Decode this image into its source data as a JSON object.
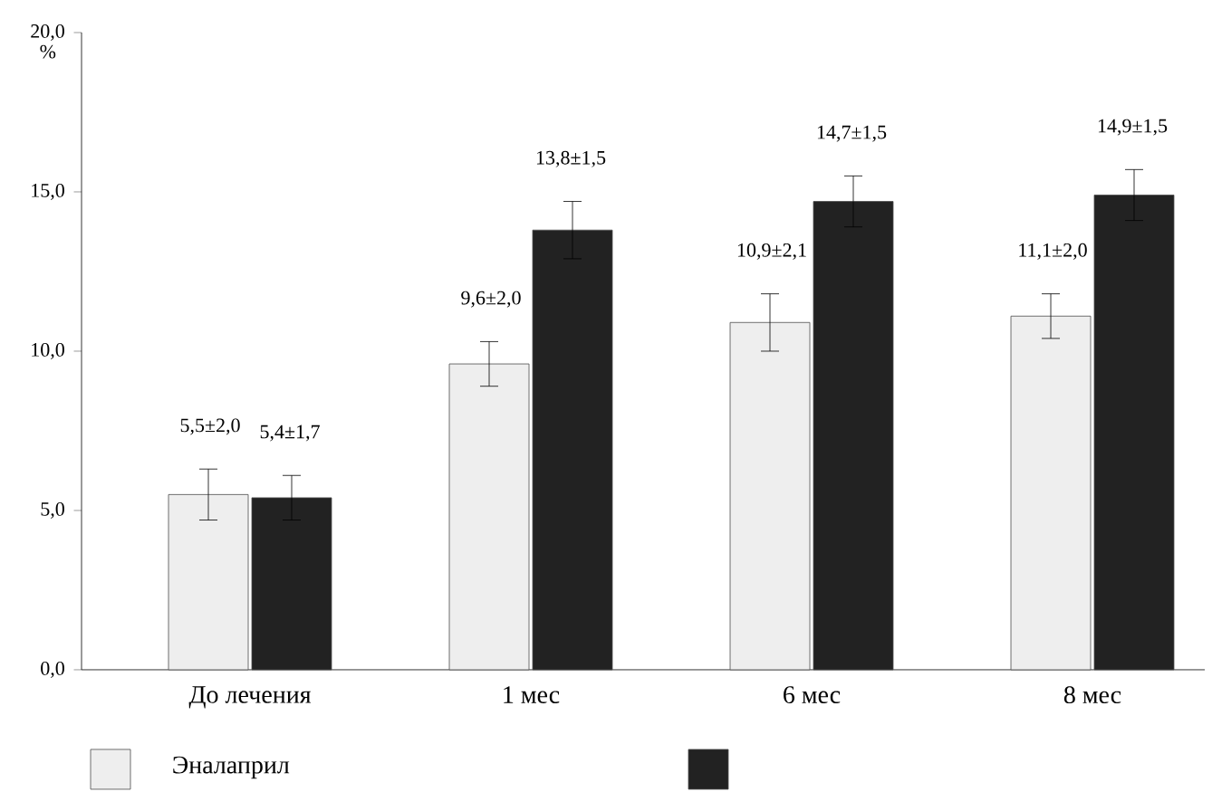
{
  "chart_data": {
    "type": "bar",
    "ylabel": "%",
    "categories": [
      "До лечения",
      "1 мес",
      "6 мес",
      "8 мес"
    ],
    "series": [
      {
        "name": "Эналаприл",
        "color": "#eeeeee",
        "values": [
          5.5,
          9.6,
          10.9,
          11.1
        ],
        "errors": [
          0.8,
          0.7,
          0.9,
          0.7
        ],
        "value_labels": [
          "5,5±2,0",
          "9,6±2,0",
          "10,9±2,1",
          "11,1±2,0"
        ]
      },
      {
        "color": "#222222",
        "values": [
          5.4,
          13.8,
          14.7,
          14.9
        ],
        "errors": [
          0.7,
          0.9,
          0.8,
          0.8
        ],
        "value_labels": [
          "5,4±1,7",
          "13,8±1,5",
          "14,7±1,5",
          "14,9±1,5"
        ]
      }
    ],
    "ylim": [
      0,
      20
    ],
    "yticks": [
      {
        "value": 0,
        "label": "0,0"
      },
      {
        "value": 5,
        "label": "5,0"
      },
      {
        "value": 10,
        "label": "10,0"
      },
      {
        "value": 15,
        "label": "15,0"
      },
      {
        "value": 20,
        "label": "20,0"
      }
    ],
    "grid": false,
    "legend": "bottom"
  }
}
